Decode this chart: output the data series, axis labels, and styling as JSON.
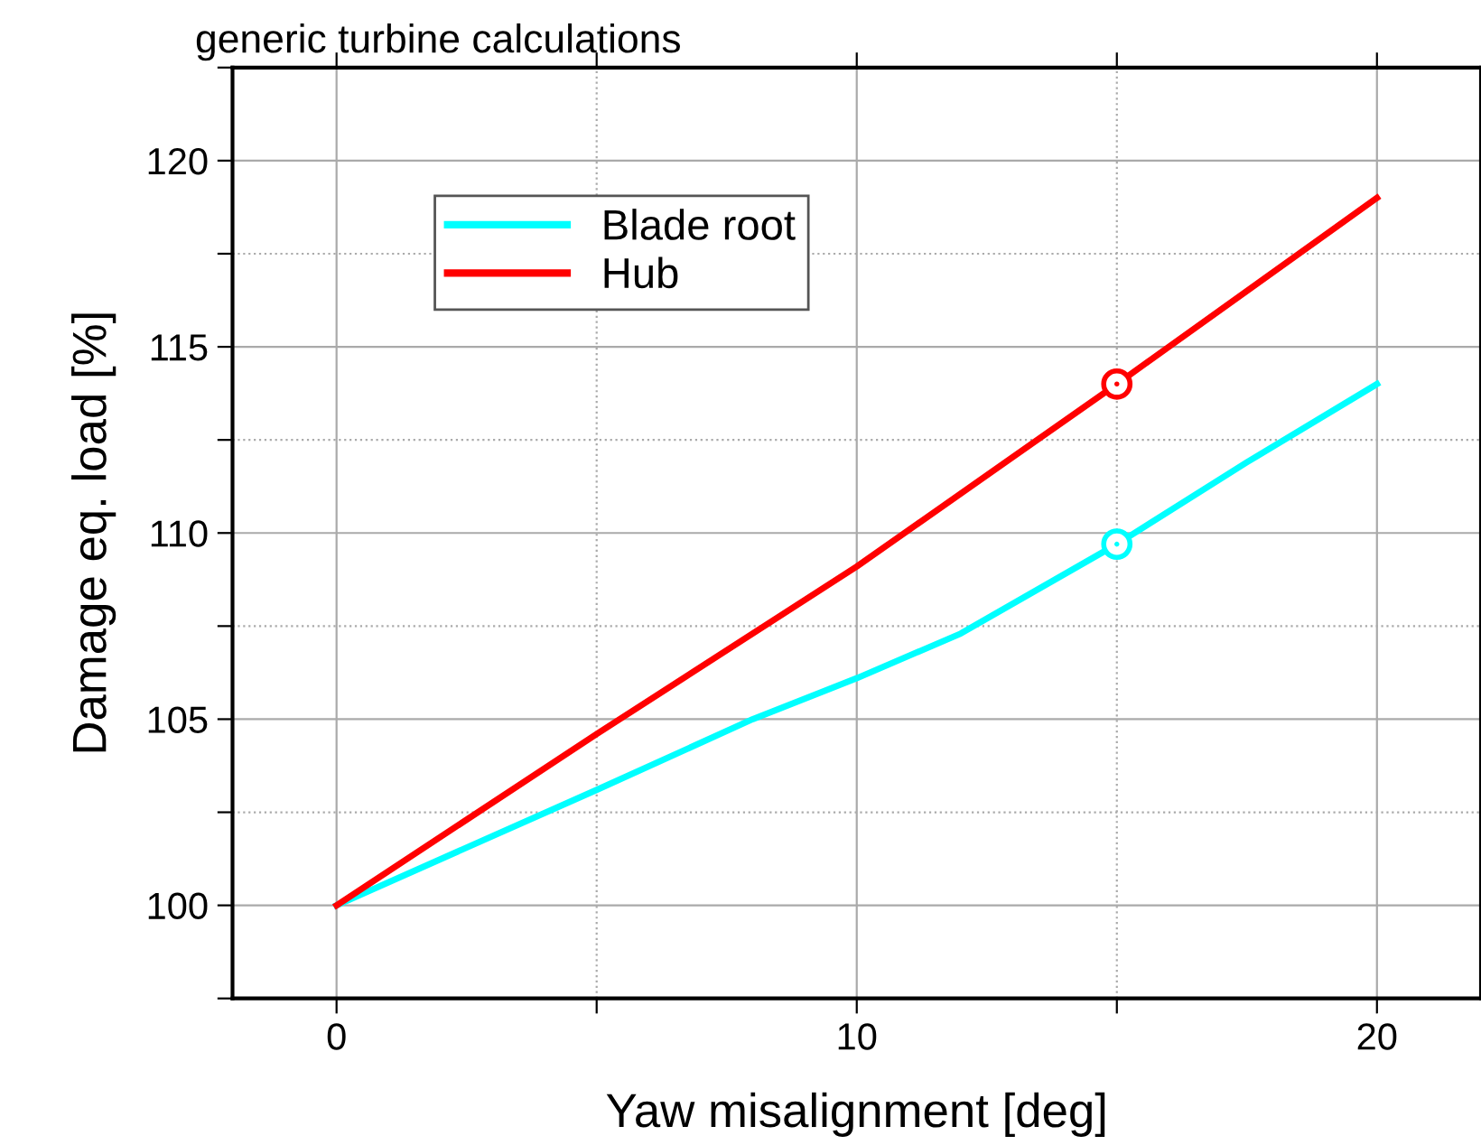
{
  "chart_data": {
    "type": "line",
    "title": "generic turbine calculations",
    "xlabel": "Yaw misalignment [deg]",
    "ylabel": "Damage eq. load [%]",
    "xlim": [
      -2,
      22
    ],
    "ylim": [
      97.5,
      122.5
    ],
    "xticks": [
      0,
      {
        "value": 5,
        "label": null
      },
      10,
      {
        "value": 15,
        "label": null
      },
      20
    ],
    "yticks": [
      {
        "value": 97.5,
        "label": null
      },
      100,
      {
        "value": 102.5,
        "label": null
      },
      105,
      {
        "value": 107.5,
        "label": null
      },
      110,
      {
        "value": 112.5,
        "label": null
      },
      115,
      {
        "value": 117.5,
        "label": null
      },
      120,
      {
        "value": 122.5,
        "label": null
      }
    ],
    "grid": true,
    "legend": "top left",
    "marker": "none",
    "line_style": "solid",
    "series": [
      {
        "name": "Blade root",
        "color": "#00ffff",
        "x": [
          0,
          5,
          8,
          10,
          12,
          15,
          17.5,
          20
        ],
        "values": [
          100,
          103.1,
          105,
          106.1,
          107.3,
          109.7,
          111.9,
          114.0
        ]
      },
      {
        "name": "Hub",
        "color": "#ff0000",
        "x": [
          0,
          5,
          10,
          15,
          20
        ],
        "values": [
          100,
          104.6,
          109.1,
          114.0,
          119.0
        ]
      },
      {
        "type": "scatter",
        "marker": "circle",
        "color": "#00ffff",
        "x": [
          15
        ],
        "values": [
          109.7
        ]
      },
      {
        "type": "scatter",
        "marker": "circle",
        "color": "#ff0000",
        "x": [
          15
        ],
        "values": [
          114.0
        ]
      }
    ]
  }
}
